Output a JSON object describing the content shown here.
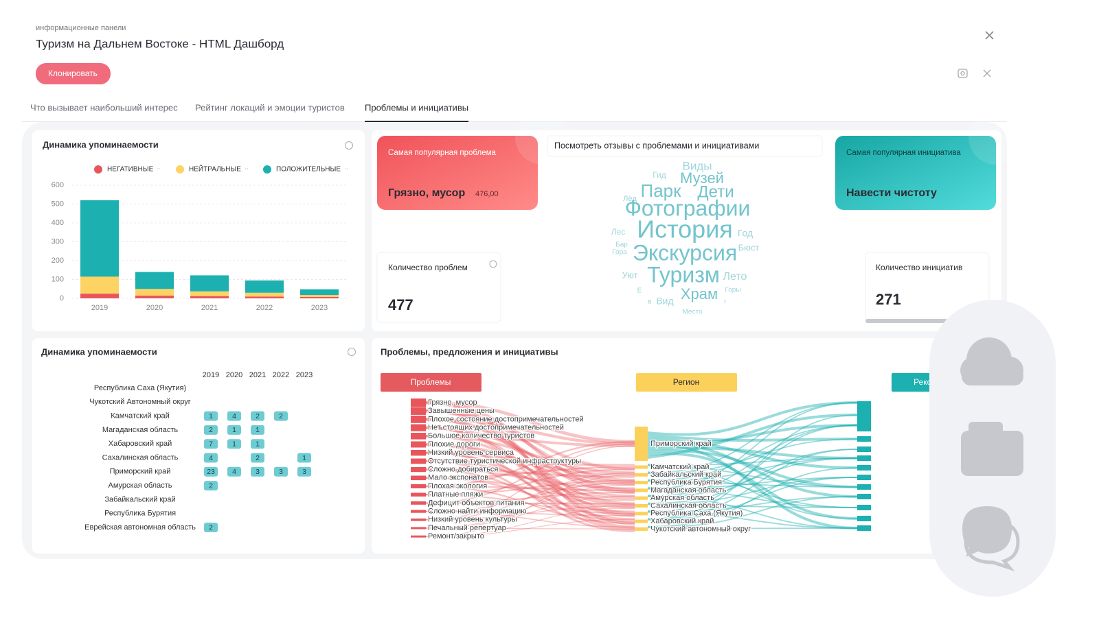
{
  "header": {
    "breadcrumb": "информационные панели",
    "title": "Туризм на Дальнем Востоке - HTML Дашборд",
    "clone_button": "Клонировать"
  },
  "tabs": {
    "items": [
      "Что вызывает наибольший интерес",
      "Рейтинг локаций и эмоции туристов",
      "Проблемы и инициативы"
    ],
    "active": 2
  },
  "chart_data": {
    "type": "bar",
    "stacked": true,
    "title": "Динамика упоминаемости",
    "categories": [
      "2019",
      "2020",
      "2021",
      "2022",
      "2023"
    ],
    "series": [
      {
        "name": "НЕГАТИВНЫЕ",
        "color": "#e8565c",
        "values": [
          25,
          15,
          12,
          10,
          8
        ]
      },
      {
        "name": "НЕЙТРАЛЬНЫЕ",
        "color": "#fdd363",
        "values": [
          90,
          35,
          25,
          20,
          10
        ]
      },
      {
        "name": "ПОЛОЖИТЕЛЬНЫЕ",
        "color": "#1cb0b0",
        "values": [
          405,
          90,
          85,
          65,
          30
        ]
      }
    ],
    "ylim": [
      0,
      600
    ],
    "yticks": [
      0,
      100,
      200,
      300,
      400,
      500,
      600
    ],
    "grid": true
  },
  "heatmap": {
    "title": "Динамика упоминаемости",
    "columns": [
      "2019",
      "2020",
      "2021",
      "2022",
      "2023"
    ],
    "rows": [
      {
        "label": "Республика Саха (Якутия)",
        "cells": [
          null,
          null,
          null,
          null,
          null
        ]
      },
      {
        "label": "Чукотский Автономный округ",
        "cells": [
          null,
          null,
          null,
          null,
          null
        ]
      },
      {
        "label": "Камчатский край",
        "cells": [
          1,
          4,
          2,
          2,
          null
        ]
      },
      {
        "label": "Магаданская область",
        "cells": [
          2,
          1,
          1,
          null,
          null
        ]
      },
      {
        "label": "Хабаровский край",
        "cells": [
          7,
          1,
          1,
          null,
          null
        ]
      },
      {
        "label": "Сахалинская область",
        "cells": [
          4,
          null,
          2,
          null,
          1
        ]
      },
      {
        "label": "Приморский край",
        "cells": [
          23,
          4,
          3,
          3,
          3
        ]
      },
      {
        "label": "Амурская область",
        "cells": [
          2,
          null,
          null,
          null,
          null
        ]
      },
      {
        "label": "Забайкальский край",
        "cells": [
          null,
          null,
          null,
          null,
          null
        ]
      },
      {
        "label": "Республика Бурятия",
        "cells": [
          null,
          null,
          null,
          null,
          null
        ]
      },
      {
        "label": "Еврейская автономная область",
        "cells": [
          2,
          null,
          null,
          null,
          null
        ]
      }
    ]
  },
  "kpi": {
    "top_problem": {
      "label": "Самая популярная проблема",
      "value": "Грязно, мусор",
      "count": "476,00"
    },
    "reviews_link": "Посмотреть отзывы с проблемами и инициативами",
    "top_initiative": {
      "label": "Самая популярная инициатива",
      "value": "Навести чистоту"
    },
    "problem_count": {
      "label": "Количество проблем",
      "value": 477
    },
    "initiative_count": {
      "label": "Количество инициатив",
      "value": 271
    }
  },
  "word_cloud": {
    "words": [
      "Виды",
      "Гид",
      "Музей",
      "Парк",
      "Дети",
      "Лёд",
      "Фотографии",
      "Лес",
      "История",
      "Год",
      "Бар",
      "Гора",
      "Экскурсия",
      "Бюст",
      "Уют",
      "Туризм",
      "Лето",
      "Е",
      "в",
      "Вид",
      "Храм",
      "Горы",
      "г",
      "Место"
    ]
  },
  "sankey": {
    "title": "Проблемы, предложения и инициативы",
    "columns": [
      "Проблемы",
      "Регион",
      "Рекомендации"
    ],
    "sources": [
      "Грязно, мусор",
      "Завышенные цены",
      "Плохое состояние достопримечательностей",
      "Нет стоящих достопримечательностей",
      "Большое количество туристов",
      "Плохие дороги",
      "Низкий уровень сервиса",
      "Отсутствие туристической инфраструктуры",
      "Сложно добираться",
      "Мало экспонатов",
      "Плохая экология",
      "Платные пляжи",
      "Дефицит объектов питания",
      "Сложно найти информацию",
      "Низкий уровень культуры",
      "Печальный репертуар",
      "Ремонт/закрыто"
    ],
    "regions": [
      "Приморский край",
      "Камчатский край",
      "Забайкальский край",
      "Республика Бурятия",
      "Магаданская область",
      "Амурская область",
      "Сахалинская область",
      "Республика Саха (Якутия)",
      "Хабаровский край",
      "Чукотский автономный округ"
    ]
  }
}
